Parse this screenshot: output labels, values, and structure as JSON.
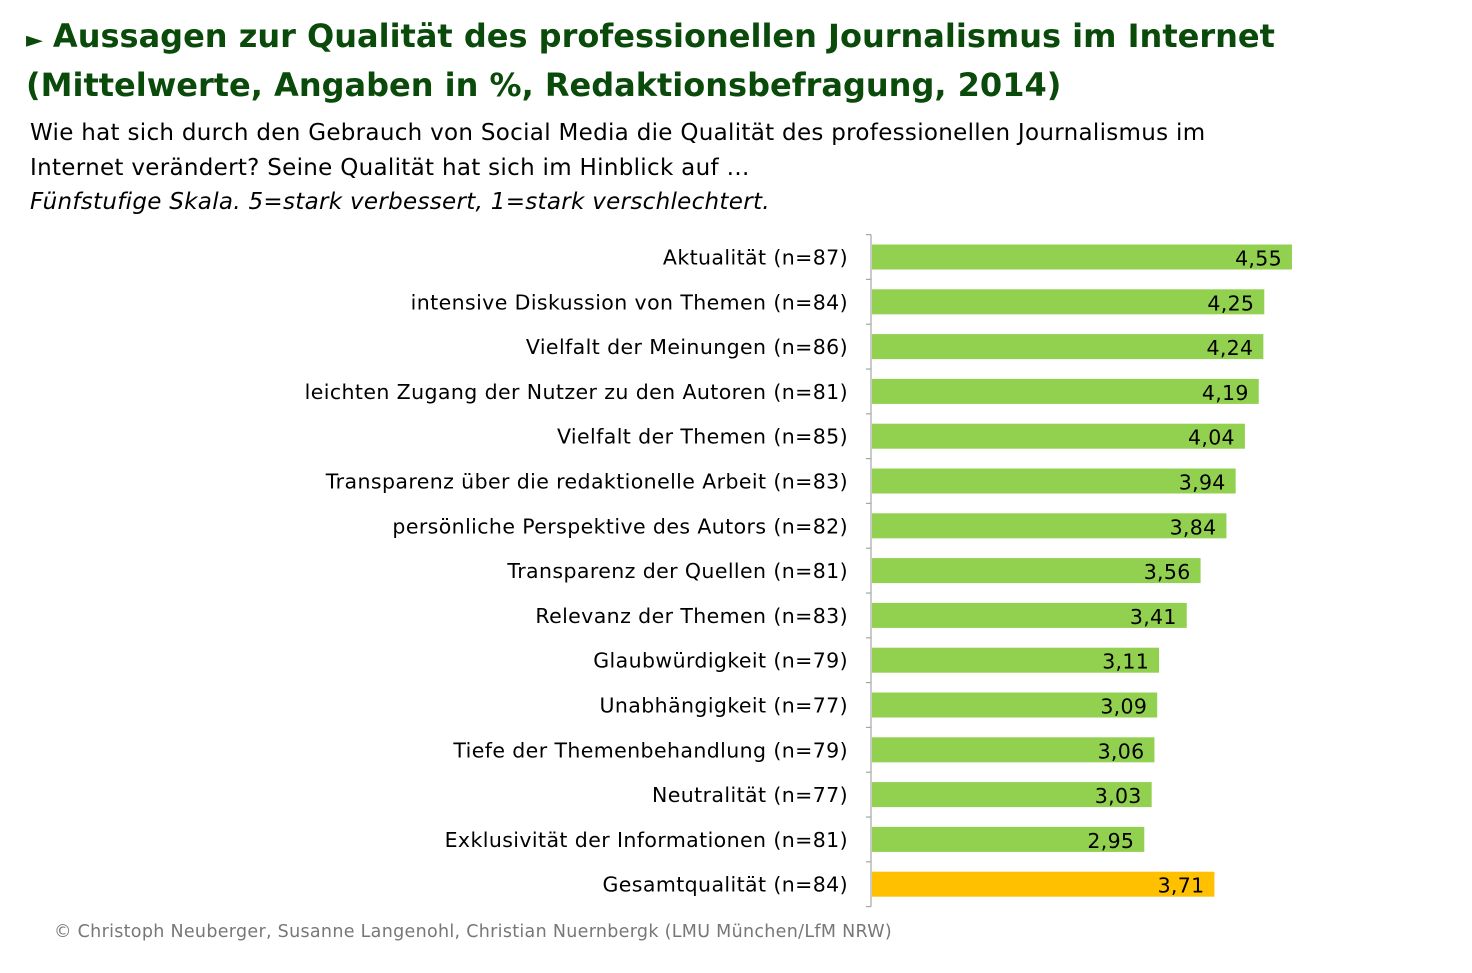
{
  "title": {
    "line1": "Aussagen zur Qualität des professionellen Journalismus im Internet",
    "line2": "(Mittelwerte, Angaben in %, Redaktionsbefragung, 2014)",
    "marker": "►"
  },
  "question": {
    "line1": "Wie hat sich durch den Gebrauch von Social Media die Qualität des professionellen Journalismus im",
    "line2": "Internet verändert? Seine Qualität hat sich im Hinblick auf …"
  },
  "scale_note": "Fünfstufige Skala. 5=stark verbessert, 1=stark verschlechtert.",
  "footer": "© Christoph Neuberger, Susanne Langenohl, Christian Nuernbergk (LMU München/LfM NRW)",
  "colors": {
    "title": "#0a4a0a",
    "bar_default": "#92d050",
    "bar_highlight": "#ffc000",
    "axis": "#a6a6a6"
  },
  "chart_data": {
    "type": "bar",
    "orientation": "horizontal",
    "categories": [
      "Aktualität (n=87)",
      "intensive Diskussion von Themen (n=84)",
      "Vielfalt der Meinungen (n=86)",
      "leichten Zugang der Nutzer zu den Autoren (n=81)",
      "Vielfalt der Themen (n=85)",
      "Transparenz über die redaktionelle Arbeit (n=83)",
      "persönliche Perspektive des Autors (n=82)",
      "Transparenz der Quellen (n=81)",
      "Relevanz der Themen (n=83)",
      "Glaubwürdigkeit (n=79)",
      "Unabhängigkeit (n=77)",
      "Tiefe der Themenbehandlung (n=79)",
      "Neutralität (n=77)",
      "Exklusivität der Informationen (n=81)",
      "Gesamtqualität (n=84)"
    ],
    "values": [
      4.55,
      4.25,
      4.24,
      4.19,
      4.04,
      3.94,
      3.84,
      3.56,
      3.41,
      3.11,
      3.09,
      3.06,
      3.03,
      2.95,
      3.71
    ],
    "value_labels": [
      "4,55",
      "4,25",
      "4,24",
      "4,19",
      "4,04",
      "3,94",
      "3,84",
      "3,56",
      "3,41",
      "3,11",
      "3,09",
      "3,06",
      "3,03",
      "2,95",
      "3,71"
    ],
    "highlight_index": 14,
    "xlim": [
      0,
      5
    ],
    "grid": false,
    "legend": "none"
  }
}
